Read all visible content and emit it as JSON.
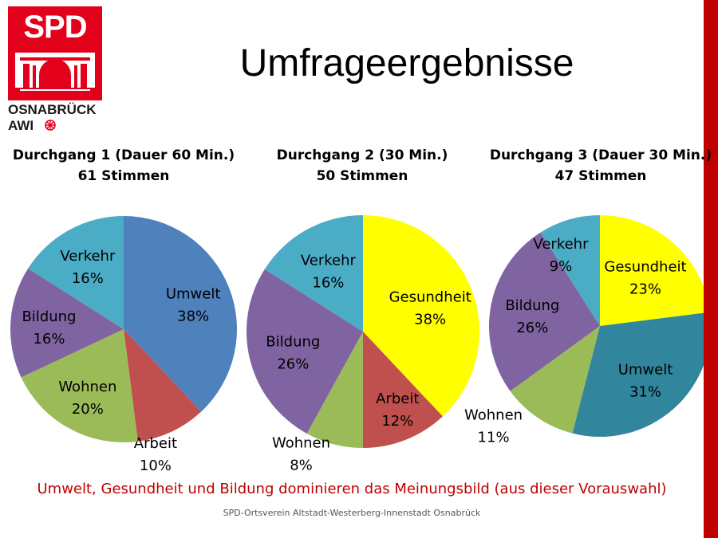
{
  "title": "Umfrageergebnisse",
  "logo": {
    "brand": "SPD",
    "city": "OSNABRÜCK",
    "group": "AWI"
  },
  "colors": {
    "accent": "#c00000",
    "logo_red": "#e3001b",
    "umwelt_1": "#4f81bd",
    "umwelt_3": "#31859c",
    "arbeit": "#c0504d",
    "wohnen": "#9bbb59",
    "bildung": "#8064a2",
    "verkehr": "#4bacc6",
    "gesundheit": "#ffff00"
  },
  "conclusion": "Umwelt, Gesundheit und Bildung dominieren das Meinungsbild (aus dieser Vorauswahl)",
  "footer": "SPD-Ortsverein Altstadt-Westerberg-Innenstadt Osnabrück",
  "chart_data": [
    {
      "type": "pie",
      "title": "Durchgang 1 (Dauer 60 Min.)",
      "subtitle": "61 Stimmen",
      "slices": [
        {
          "label": "Umwelt",
          "value": 38,
          "value_label": "38%",
          "color": "#4f81bd"
        },
        {
          "label": "Arbeit",
          "value": 10,
          "value_label": "10%",
          "color": "#c0504d"
        },
        {
          "label": "Wohnen",
          "value": 20,
          "value_label": "20%",
          "color": "#9bbb59"
        },
        {
          "label": "Bildung",
          "value": 16,
          "value_label": "16%",
          "color": "#8064a2"
        },
        {
          "label": "Verkehr",
          "value": 16,
          "value_label": "16%",
          "color": "#4bacc6"
        }
      ]
    },
    {
      "type": "pie",
      "title": "Durchgang 2 (30 Min.)",
      "subtitle": "50 Stimmen",
      "slices": [
        {
          "label": "Gesundheit",
          "value": 38,
          "value_label": "38%",
          "color": "#ffff00"
        },
        {
          "label": "Arbeit",
          "value": 12,
          "value_label": "12%",
          "color": "#c0504d"
        },
        {
          "label": "Wohnen",
          "value": 8,
          "value_label": "8%",
          "color": "#9bbb59"
        },
        {
          "label": "Bildung",
          "value": 26,
          "value_label": "26%",
          "color": "#8064a2"
        },
        {
          "label": "Verkehr",
          "value": 16,
          "value_label": "16%",
          "color": "#4bacc6"
        }
      ]
    },
    {
      "type": "pie",
      "title": "Durchgang 3 (Dauer 30 Min.)",
      "subtitle": "47 Stimmen",
      "slices": [
        {
          "label": "Gesundheit",
          "value": 23,
          "value_label": "23%",
          "color": "#ffff00"
        },
        {
          "label": "Umwelt",
          "value": 31,
          "value_label": "31%",
          "color": "#31859c"
        },
        {
          "label": "Wohnen",
          "value": 11,
          "value_label": "11%",
          "color": "#9bbb59"
        },
        {
          "label": "Bildung",
          "value": 26,
          "value_label": "26%",
          "color": "#8064a2"
        },
        {
          "label": "Verkehr",
          "value": 9,
          "value_label": "9%",
          "color": "#4bacc6"
        }
      ]
    }
  ]
}
